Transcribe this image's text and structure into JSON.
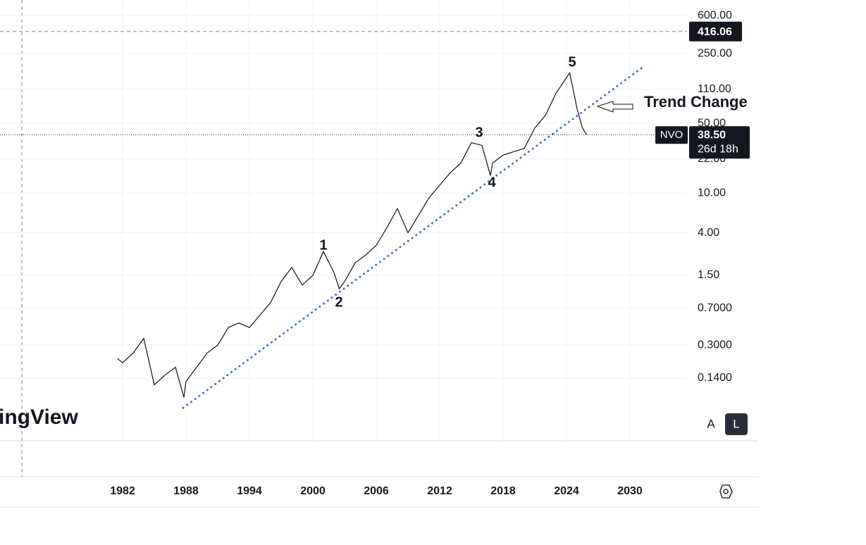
{
  "chart_data": {
    "type": "line",
    "log_scale": true,
    "grid": true,
    "xlim": [
      1970.4,
      2035.4
    ],
    "ylim": [
      0.033,
      860
    ],
    "xticks": [
      1982,
      1988,
      1994,
      2000,
      2006,
      2012,
      2018,
      2024,
      2030
    ],
    "yticks": [
      {
        "value": 600,
        "label": "600.00"
      },
      {
        "value": 250,
        "label": "250.00"
      },
      {
        "value": 110,
        "label": "110.00"
      },
      {
        "value": 50,
        "label": "50.00"
      },
      {
        "value": 22,
        "label": "22.00"
      },
      {
        "value": 10,
        "label": "10.00"
      },
      {
        "value": 4,
        "label": "4.00"
      },
      {
        "value": 1.5,
        "label": "1.50"
      },
      {
        "value": 0.7,
        "label": "0.7000"
      },
      {
        "value": 0.3,
        "label": "0.3000"
      },
      {
        "value": 0.14,
        "label": "0.1400"
      }
    ],
    "series": [
      {
        "name": "NVO",
        "color": "#111111",
        "x": [
          1981.5,
          1982,
          1983,
          1984,
          1985,
          1986,
          1987,
          1987.8,
          1988,
          1989,
          1990,
          1991,
          1992,
          1993,
          1994,
          1995,
          1996,
          1997,
          1998,
          1999,
          2000,
          2001,
          2002,
          2002.5,
          2003,
          2004,
          2005,
          2006,
          2007,
          2008,
          2009,
          2010,
          2011,
          2012,
          2013,
          2014,
          2015,
          2016,
          2016.8,
          2017,
          2018,
          2019,
          2020,
          2021,
          2022,
          2023,
          2024.3,
          2025,
          2025.5,
          2025.9
        ],
        "values": [
          0.22,
          0.2,
          0.25,
          0.35,
          0.12,
          0.15,
          0.18,
          0.09,
          0.13,
          0.18,
          0.25,
          0.3,
          0.45,
          0.5,
          0.45,
          0.6,
          0.8,
          1.3,
          1.8,
          1.2,
          1.5,
          2.6,
          1.6,
          1.1,
          1.3,
          2,
          2.4,
          3,
          4.5,
          7,
          4,
          6,
          9,
          12,
          16,
          20,
          32,
          30,
          15,
          20,
          24,
          26,
          28,
          45,
          60,
          100,
          160,
          70,
          45,
          38.5
        ]
      }
    ],
    "trendline": {
      "color": "#3a6fd8",
      "x": [
        1987.73,
        2031.07
      ],
      "values": [
        0.0705,
        178
      ]
    },
    "last_price": {
      "value": 38.5,
      "label": "38.50"
    },
    "countdown": "26d 18h",
    "crosshair_price": {
      "value": 416.06,
      "label": "416.06"
    },
    "annotations": [
      "1",
      "2",
      "3",
      "4",
      "5",
      "Trend Change"
    ],
    "watermark": "ingView",
    "buttons": [
      "A",
      "L"
    ]
  }
}
